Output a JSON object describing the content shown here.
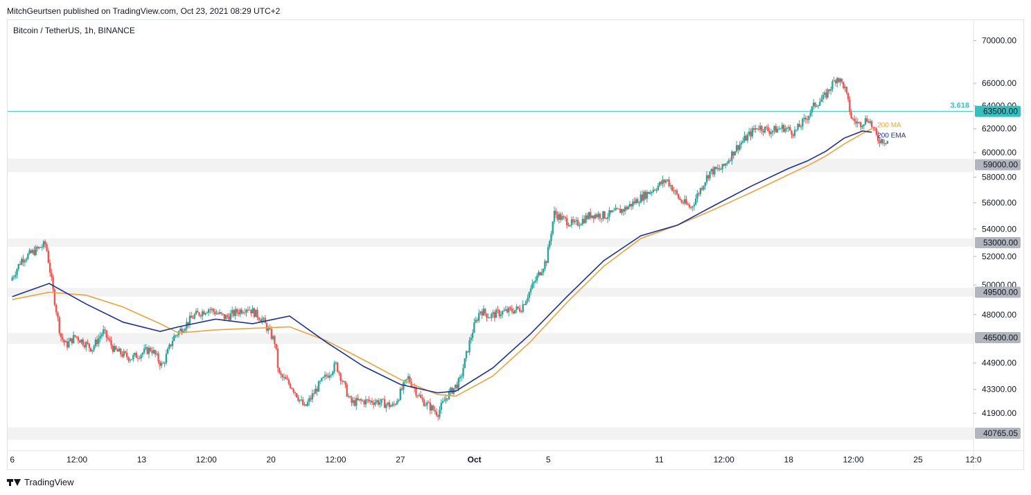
{
  "header": {
    "published_line": "MitchGeurtsen published on TradingView.com, Oct 23, 2021 08:29 UTC+2",
    "symbol_line": "Bitcoin / TetherUS, 1h, BINANCE"
  },
  "footer": {
    "brand": "TradingView"
  },
  "colors": {
    "up": "#26a69a",
    "down": "#ef5350",
    "ma": "#e8a33d",
    "ema": "#1e2f8e",
    "fib": "#35c0c0",
    "zone": "#f2f2f2",
    "axis_text": "#131722"
  },
  "chart_data": {
    "type": "line",
    "title": "",
    "price_ticks": [
      "70000.00",
      "66000.00",
      "64000.00",
      "62000.00",
      "60000.00",
      "58000.00",
      "56000.00",
      "54000.00",
      "52000.00",
      "50000.00",
      "48000.00",
      "44900.00",
      "43300.00",
      "41900.00"
    ],
    "y_scale": "log",
    "ylim": [
      39800,
      72000
    ],
    "time_ticks": [
      "6",
      "12:00",
      "13",
      "12:00",
      "20",
      "12:00",
      "27",
      "Oct",
      "5",
      "11",
      "12:00",
      "18",
      "12:00",
      "25",
      "12:0"
    ],
    "time_tick_bold": [
      "Oct"
    ],
    "x_range_days": [
      -0.25,
      52
    ],
    "time_tick_days": [
      0,
      3.5,
      7,
      10.5,
      14,
      17.5,
      21,
      25,
      29,
      35,
      38.5,
      42,
      45.5,
      49,
      52
    ],
    "horizontal_zones": [
      {
        "label": "59000.00",
        "low": 58400,
        "high": 59500
      },
      {
        "label": "53000.00",
        "low": 52700,
        "high": 53300
      },
      {
        "label": "49500.00",
        "low": 49200,
        "high": 49800
      },
      {
        "label": "46500.00",
        "low": 46100,
        "high": 46800
      },
      {
        "label": "40765.05",
        "low": 40400,
        "high": 41100
      }
    ],
    "fib_level": {
      "label": "3.618",
      "price_label": "63500.00",
      "value": 63500
    },
    "series": [
      {
        "name": "200 MA",
        "x": [
          0,
          2,
          4,
          6,
          8,
          9,
          11,
          13,
          15,
          17,
          19,
          21,
          23,
          24,
          26,
          28,
          30,
          32,
          34,
          36,
          38,
          40,
          42,
          43,
          44,
          45,
          46,
          46.5
        ],
        "y": [
          49000,
          49500,
          49300,
          48500,
          47400,
          46800,
          47000,
          47100,
          47200,
          46300,
          45100,
          43900,
          43000,
          42900,
          44100,
          46200,
          48800,
          51300,
          53300,
          54300,
          55500,
          56800,
          58200,
          58900,
          59700,
          60700,
          61600,
          62000
        ]
      },
      {
        "name": "200 EMA",
        "x": [
          0,
          2,
          4,
          6,
          8,
          9,
          11,
          13,
          15,
          17,
          19,
          21,
          23,
          24,
          26,
          28,
          30,
          32,
          34,
          36,
          38,
          40,
          42,
          43,
          44,
          45,
          46,
          46.5
        ],
        "y": [
          49200,
          50100,
          48700,
          47500,
          46900,
          47200,
          47700,
          47400,
          47900,
          46200,
          44700,
          43600,
          43100,
          43200,
          44600,
          46700,
          49200,
          51700,
          53500,
          54300,
          55800,
          57300,
          58700,
          59300,
          60100,
          61200,
          61800,
          61700
        ]
      }
    ],
    "price_path": {
      "x": [
        0,
        0.6,
        1.2,
        1.9,
        2.3,
        2.7,
        3,
        3.5,
        4.4,
        5,
        5.6,
        6.5,
        7.6,
        8.2,
        8.8,
        9.9,
        10.7,
        11.6,
        12.8,
        13.6,
        14.3,
        14.5,
        15.2,
        15.9,
        16.7,
        17.6,
        18.4,
        18.9,
        19.8,
        20.7,
        21.5,
        22.2,
        23.1,
        23.6,
        24.3,
        25,
        25.4,
        25.9,
        26.4,
        27.6,
        28.3,
        29,
        29.4,
        29.8,
        30.5,
        31.4,
        32.2,
        33.2,
        34.6,
        35.5,
        36.2,
        36.8,
        37.4,
        37.8,
        38.5,
        39.2,
        40.4,
        41.1,
        41.8,
        42.4,
        43,
        43.5,
        44,
        44.7,
        45.1,
        45.5,
        45.9,
        46.4,
        46.9,
        47.4
      ],
      "y": [
        50300,
        51800,
        52300,
        52900,
        49500,
        46600,
        46000,
        46600,
        45800,
        46900,
        45700,
        45200,
        45800,
        44700,
        46500,
        47900,
        48400,
        47800,
        48500,
        47700,
        46200,
        44200,
        43500,
        42200,
        43600,
        44800,
        42500,
        42600,
        42600,
        42300,
        44000,
        42700,
        41900,
        42900,
        43800,
        47000,
        48300,
        47900,
        48100,
        48400,
        50100,
        51800,
        55200,
        54800,
        54300,
        55100,
        55000,
        55500,
        56900,
        57800,
        56200,
        55600,
        57300,
        58400,
        58700,
        60300,
        62200,
        61800,
        62100,
        61700,
        62800,
        64100,
        64700,
        66600,
        65700,
        62800,
        62400,
        62900,
        61100,
        61000
      ]
    }
  }
}
